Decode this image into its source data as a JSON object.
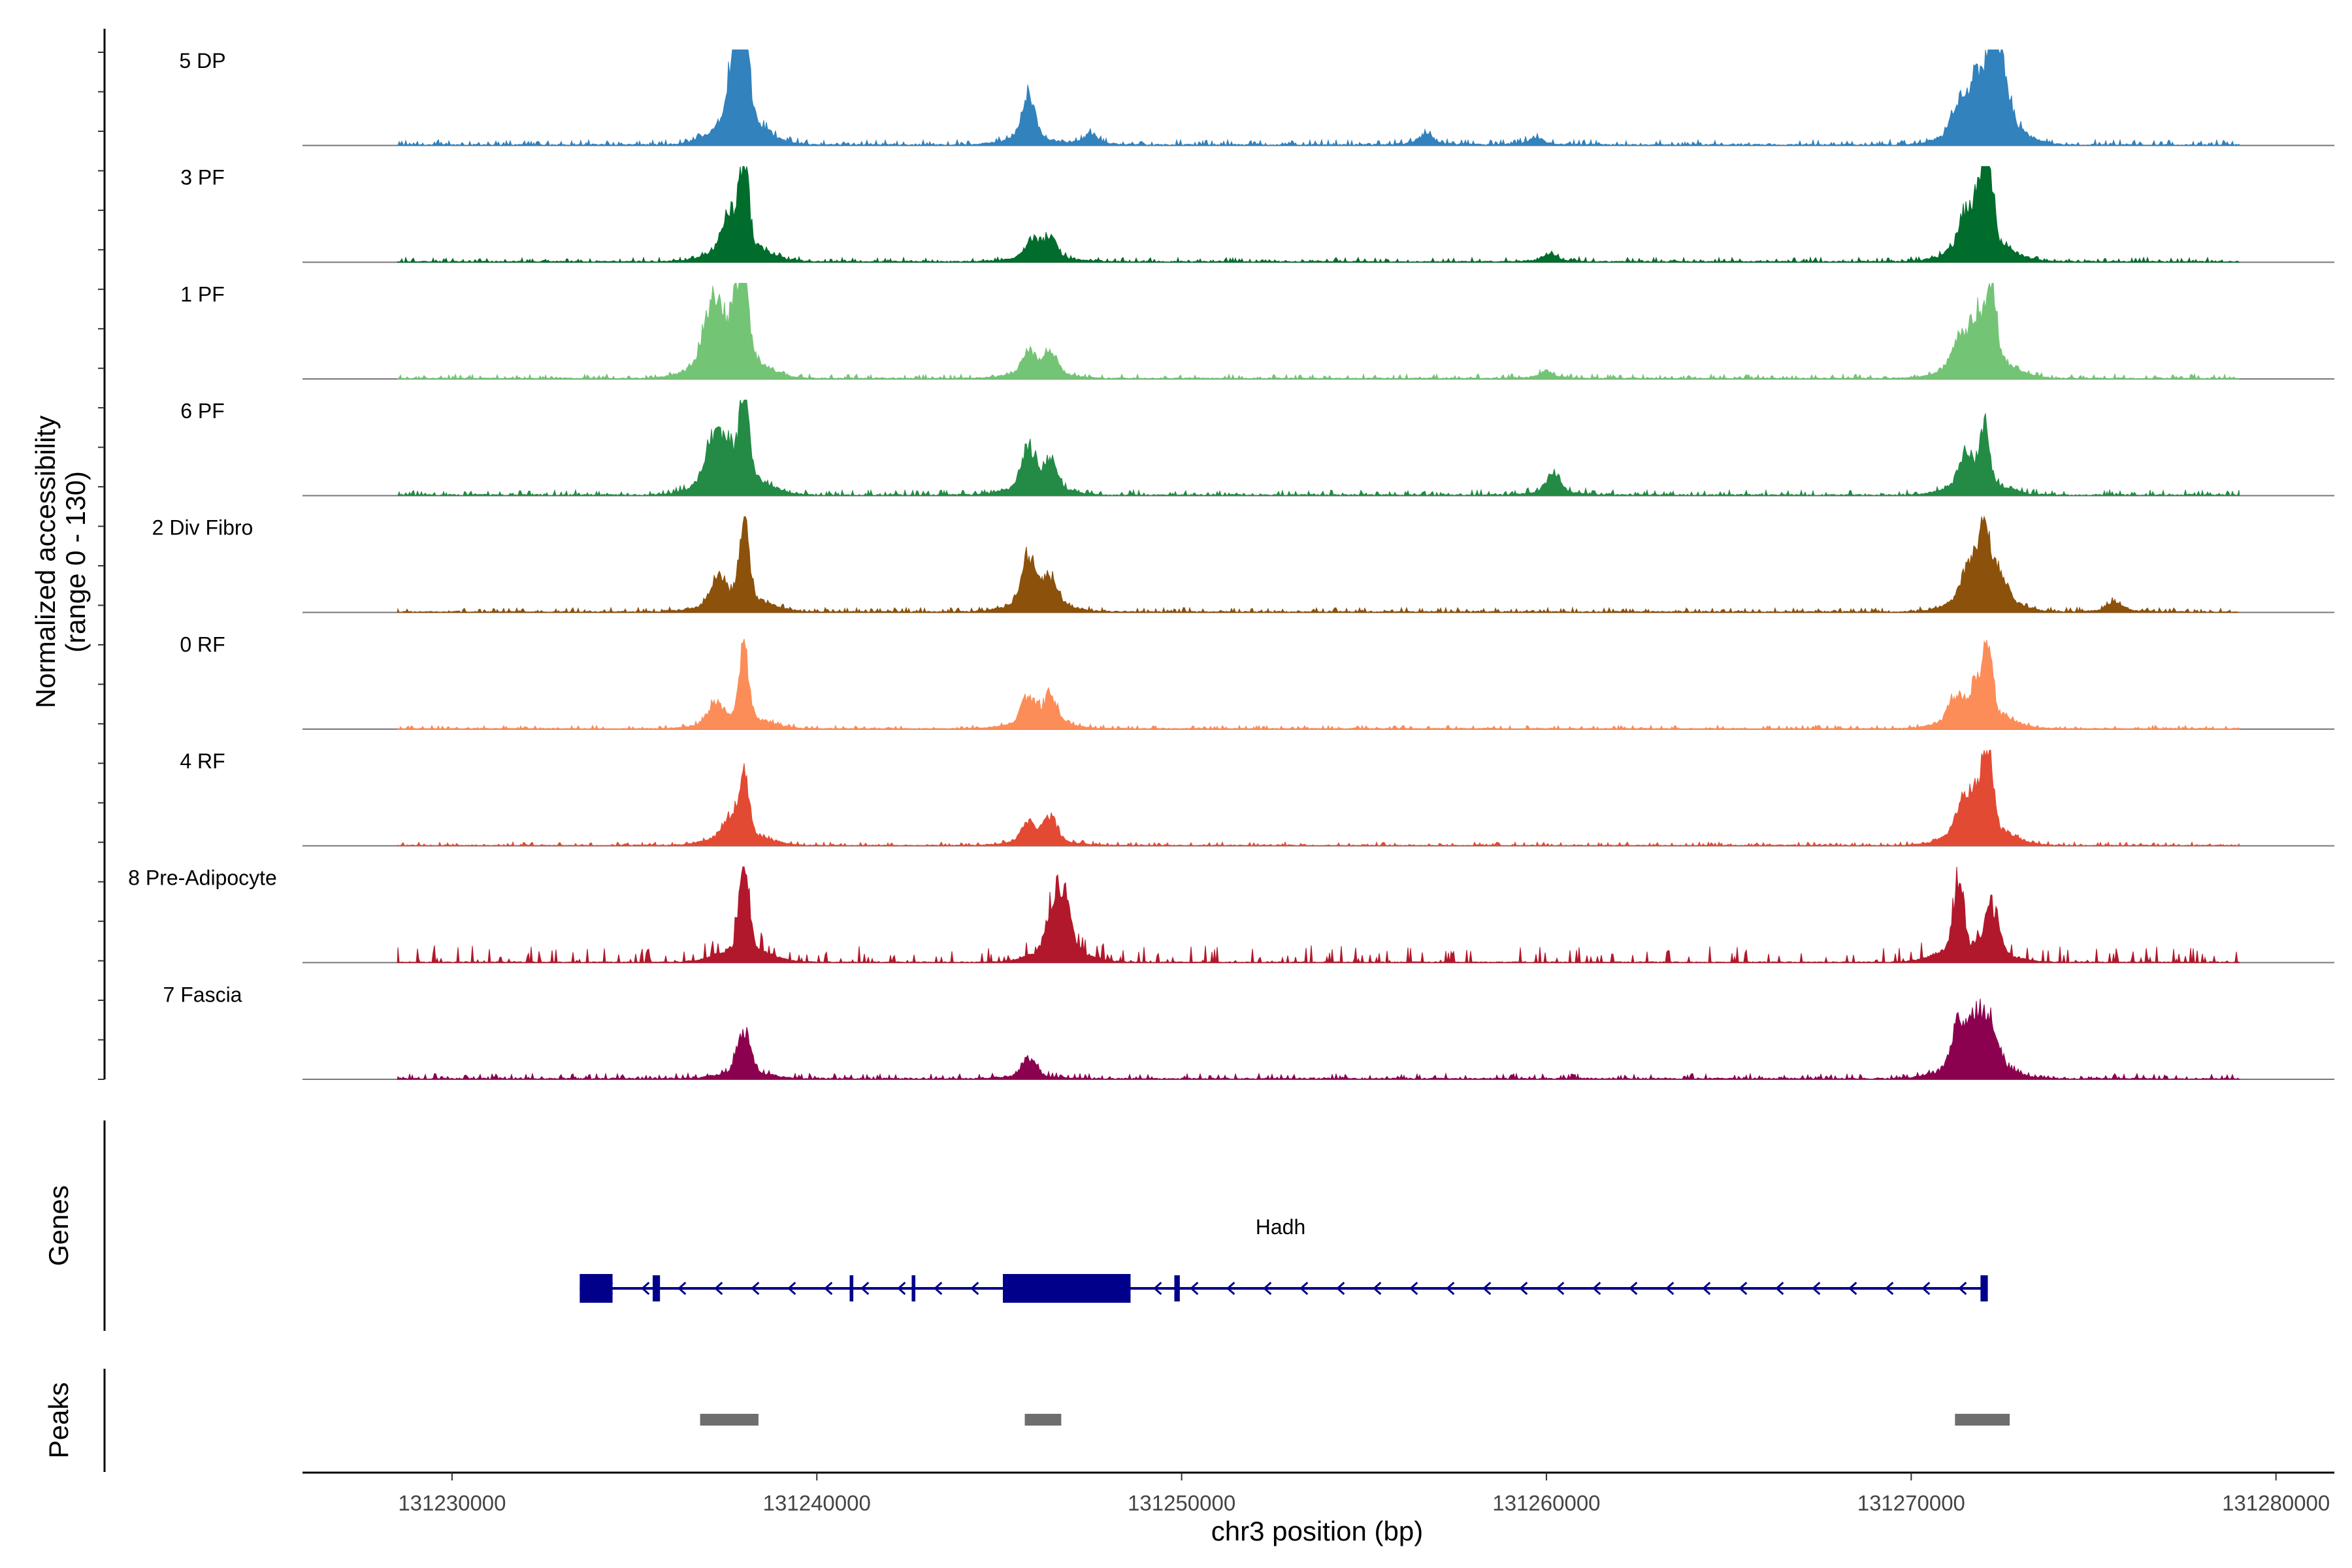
{
  "chart_data": {
    "type": "area",
    "title": "",
    "coverage": {
      "ylabel_line1": "Normalized accessibility",
      "ylabel_line2": "(range 0 - 130)",
      "ylim": [
        0,
        130
      ]
    },
    "xaxis": {
      "label": "chr3 position (bp)",
      "range": [
        131225900,
        131281600
      ],
      "ticks": [
        131230000,
        131240000,
        131250000,
        131260000,
        131270000,
        131280000
      ],
      "tick_labels": [
        "131230000",
        "131240000",
        "131250000",
        "131260000",
        "131270000",
        "131280000"
      ]
    },
    "tracks": [
      {
        "name": "5 DP",
        "color": "#3182bd",
        "peaks": [
          [
            131237800,
            0.6
          ],
          [
            131238000,
            1.0
          ],
          [
            131237700,
            0.3
          ],
          [
            131245800,
            0.45
          ],
          [
            131247500,
            0.1
          ],
          [
            131256700,
            0.1
          ],
          [
            131259700,
            0.07
          ],
          [
            131271800,
            0.5
          ],
          [
            131272200,
            1.0
          ],
          [
            131272500,
            0.55
          ],
          [
            131271300,
            0.3
          ]
        ],
        "noise": 0.06,
        "sparse": false
      },
      {
        "name": "3 PF",
        "color": "#006d2c",
        "peaks": [
          [
            131237600,
            0.35
          ],
          [
            131238000,
            0.95
          ],
          [
            131245900,
            0.2
          ],
          [
            131246400,
            0.2
          ],
          [
            131260100,
            0.08
          ],
          [
            131271500,
            0.35
          ],
          [
            131271900,
            0.45
          ],
          [
            131272100,
            0.9
          ]
        ],
        "noise": 0.05,
        "sparse": false
      },
      {
        "name": "1 PF",
        "color": "#74c476",
        "peaks": [
          [
            131237000,
            0.4
          ],
          [
            131237300,
            0.5
          ],
          [
            131237800,
            0.5
          ],
          [
            131238000,
            0.75
          ],
          [
            131245800,
            0.25
          ],
          [
            131246400,
            0.25
          ],
          [
            131260000,
            0.07
          ],
          [
            131271300,
            0.3
          ],
          [
            131271800,
            0.5
          ],
          [
            131272200,
            0.9
          ]
        ],
        "noise": 0.05,
        "sparse": false
      },
      {
        "name": "6 PF",
        "color": "#238b45",
        "peaks": [
          [
            131237100,
            0.4
          ],
          [
            131237500,
            0.4
          ],
          [
            131238000,
            1.0
          ],
          [
            131245800,
            0.45
          ],
          [
            131246400,
            0.3
          ],
          [
            131260200,
            0.22
          ],
          [
            131271500,
            0.35
          ],
          [
            131272000,
            0.65
          ]
        ],
        "noise": 0.06,
        "sparse": false
      },
      {
        "name": "2 Div Fibro",
        "color": "#8c510a",
        "peaks": [
          [
            131237300,
            0.3
          ],
          [
            131238000,
            0.9
          ],
          [
            131245800,
            0.5
          ],
          [
            131246400,
            0.3
          ],
          [
            131271600,
            0.4
          ],
          [
            131272000,
            0.9
          ],
          [
            131272400,
            0.3
          ],
          [
            131275600,
            0.1
          ]
        ],
        "noise": 0.05,
        "sparse": false
      },
      {
        "name": "0 RF",
        "color": "#fc8d59",
        "peaks": [
          [
            131237200,
            0.2
          ],
          [
            131238000,
            0.75
          ],
          [
            131245800,
            0.3
          ],
          [
            131246400,
            0.3
          ],
          [
            131271200,
            0.25
          ],
          [
            131271800,
            0.35
          ],
          [
            131272100,
            0.75
          ]
        ],
        "noise": 0.04,
        "sparse": false
      },
      {
        "name": "4 RF",
        "color": "#e34a33",
        "peaks": [
          [
            131237600,
            0.2
          ],
          [
            131238000,
            0.7
          ],
          [
            131245800,
            0.2
          ],
          [
            131246400,
            0.25
          ],
          [
            131271400,
            0.3
          ],
          [
            131271800,
            0.35
          ],
          [
            131272100,
            0.9
          ]
        ],
        "noise": 0.04,
        "sparse": false
      },
      {
        "name": "8 Pre-Adipocyte",
        "color": "#b2182b",
        "peaks": [
          [
            131238000,
            1.0
          ],
          [
            131246500,
            0.5
          ],
          [
            131246800,
            0.5
          ],
          [
            131271300,
            0.8
          ],
          [
            131272200,
            0.5
          ]
        ],
        "noise": 0.15,
        "sparse": true
      },
      {
        "name": "7 Fascia",
        "color": "#8c0050",
        "peaks": [
          [
            131238000,
            0.45
          ],
          [
            131245800,
            0.2
          ],
          [
            131271300,
            0.45
          ],
          [
            131271800,
            0.55
          ],
          [
            131272200,
            0.45
          ]
        ],
        "noise": 0.06,
        "sparse": false
      }
    ],
    "genes": {
      "label": "Genes",
      "name": "Hadh",
      "color": "#00008b",
      "strand": "-",
      "start": 131233500,
      "end": 131272100,
      "exons": [
        [
          131233500,
          131234400
        ],
        [
          131235500,
          131235700
        ],
        [
          131240900,
          131241000
        ],
        [
          131242600,
          131242700
        ],
        [
          131245100,
          131248600
        ],
        [
          131249800,
          131249950
        ],
        [
          131271900,
          131272100
        ]
      ]
    },
    "peaks": {
      "label": "Peaks",
      "color": "#6e6e6e",
      "regions": [
        [
          131236800,
          131238400
        ],
        [
          131245700,
          131246700
        ],
        [
          131271200,
          131272700
        ]
      ]
    }
  }
}
